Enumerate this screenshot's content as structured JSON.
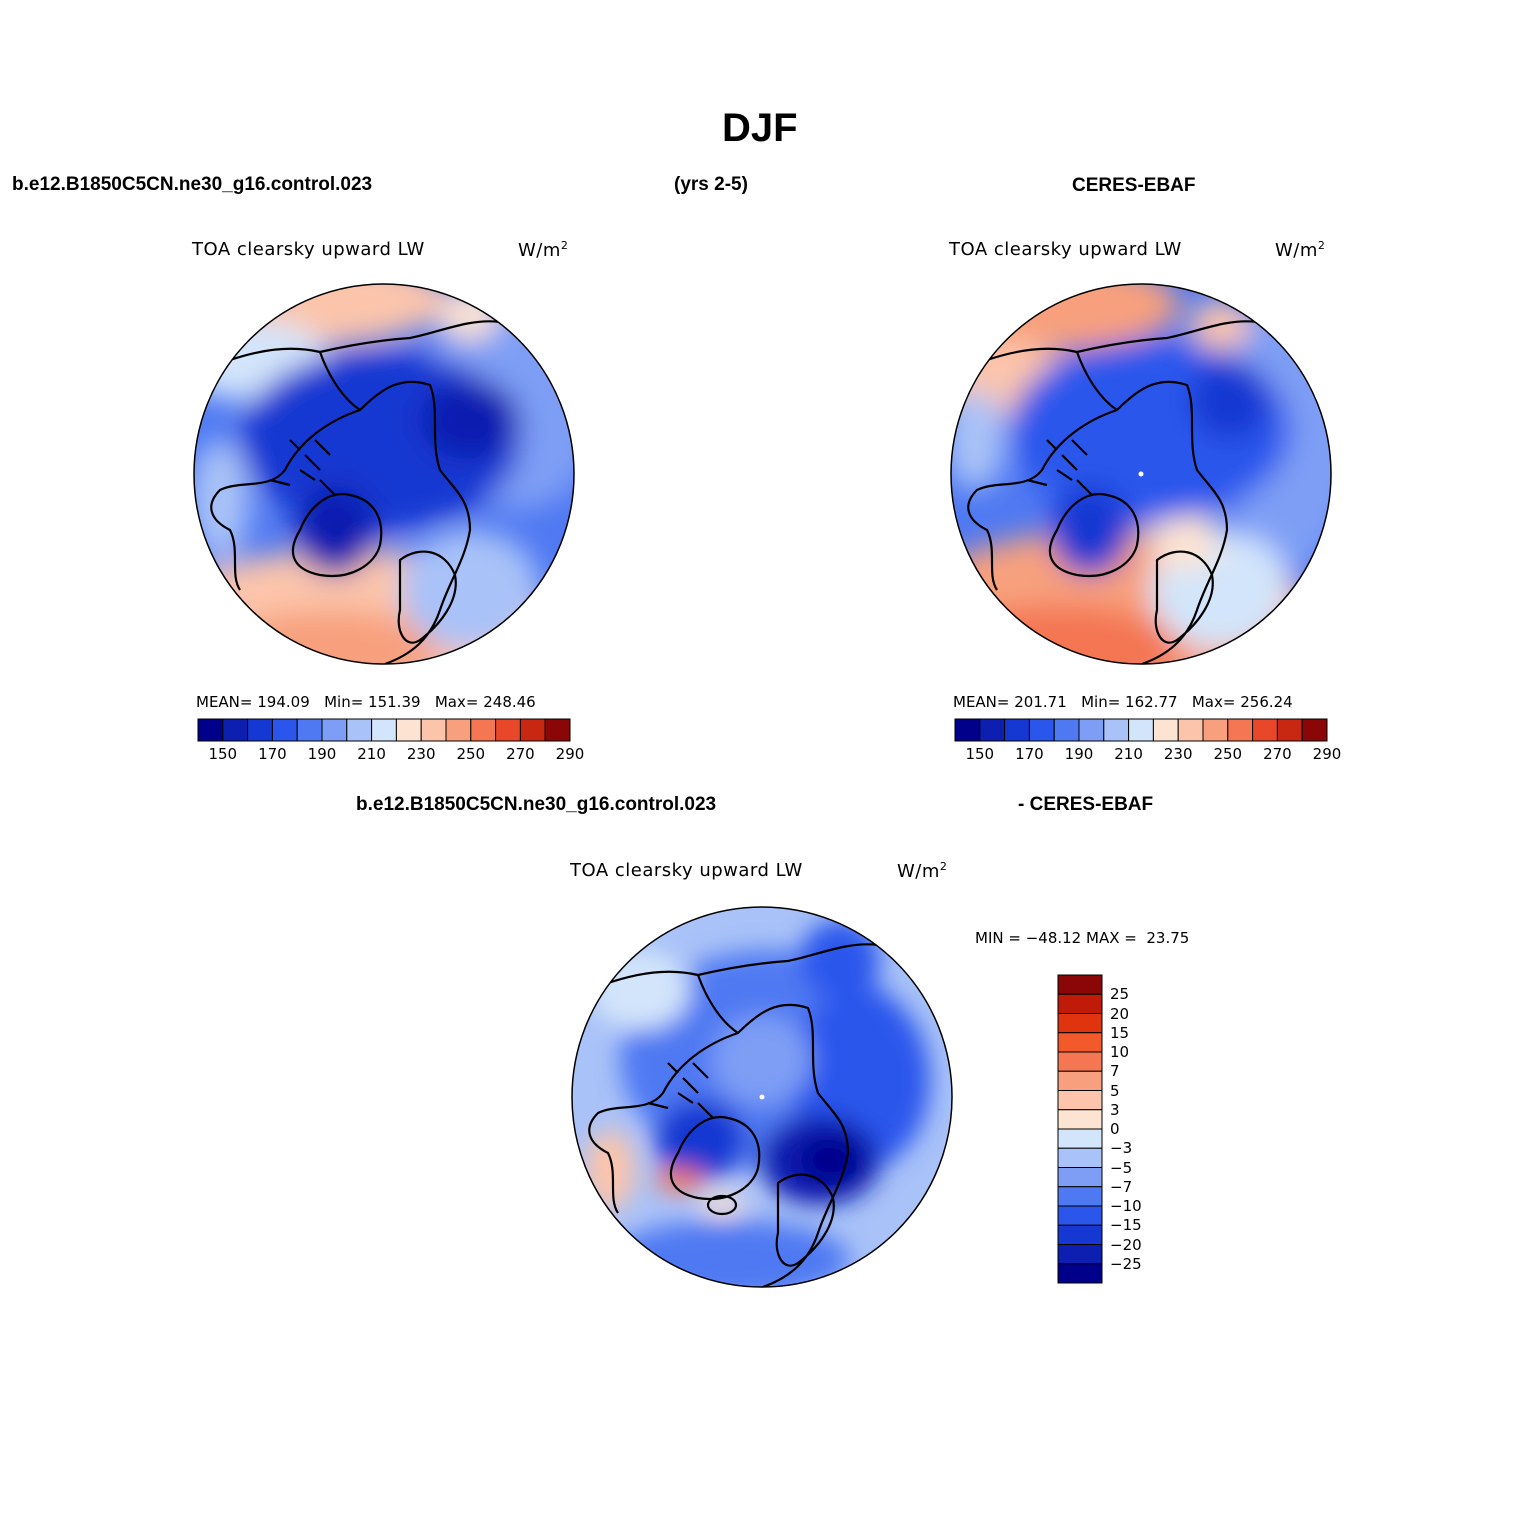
{
  "title": "DJF",
  "header_left": "b.e12.B1850C5CN.ne30_g16.control.023",
  "header_center": "(yrs 2-5)",
  "header_right": "CERES-EBAF",
  "diff_header_left": "b.e12.B1850C5CN.ne30_g16.control.023",
  "diff_header_right": "- CERES-EBAF",
  "variable_label": "TOA clearsky upward LW",
  "units_base": "W/m",
  "units_exp": "2",
  "colors": {
    "abs": [
      "#00008b",
      "#0c1fb0",
      "#1638d2",
      "#2b56ec",
      "#4f79f2",
      "#7e9ef5",
      "#a9c2f8",
      "#d3e5fb",
      "#fde4d2",
      "#fcc5ab",
      "#f8a07d",
      "#f47652",
      "#e8472a",
      "#c82812",
      "#8b0606"
    ],
    "diff": [
      "#00008b",
      "#0c1fb0",
      "#1638d2",
      "#2b56ec",
      "#4f79f2",
      "#7e9ef5",
      "#a9c2f8",
      "#d3e5fb",
      "#fde4d2",
      "#fcc5ab",
      "#f8a07d",
      "#f47652",
      "#f25a2c",
      "#e0340f",
      "#c01a08",
      "#8b0606"
    ],
    "coast": "#000000"
  },
  "chart_data": [
    {
      "type": "heatmap",
      "projection": "north-polar-stereographic",
      "title": "b.e12.B1850C5CN.ne30_g16.control.023",
      "subtitle": "TOA clearsky upward LW",
      "units": "W/m2",
      "stats": {
        "mean_label": "MEAN=",
        "mean": "194.09",
        "min_label": "Min=",
        "min": "151.39",
        "max_label": "Max=",
        "max": "248.46"
      },
      "colorbar": {
        "orientation": "horizontal",
        "levels": [
          150,
          160,
          170,
          180,
          190,
          200,
          210,
          220,
          230,
          240,
          250,
          260,
          270,
          280,
          290
        ],
        "tick_labels": [
          "150",
          "170",
          "190",
          "210",
          "230",
          "250",
          "270",
          "290"
        ]
      }
    },
    {
      "type": "heatmap",
      "projection": "north-polar-stereographic",
      "title": "CERES-EBAF",
      "subtitle": "TOA clearsky upward LW",
      "units": "W/m2",
      "stats": {
        "mean_label": "MEAN=",
        "mean": "201.71",
        "min_label": "Min=",
        "min": "162.77",
        "max_label": "Max=",
        "max": "256.24"
      },
      "colorbar": {
        "orientation": "horizontal",
        "levels": [
          150,
          160,
          170,
          180,
          190,
          200,
          210,
          220,
          230,
          240,
          250,
          260,
          270,
          280,
          290
        ],
        "tick_labels": [
          "150",
          "170",
          "190",
          "210",
          "230",
          "250",
          "270",
          "290"
        ]
      }
    },
    {
      "type": "heatmap",
      "projection": "north-polar-stereographic",
      "title": "b.e12.B1850C5CN.ne30_g16.control.023 - CERES-EBAF",
      "subtitle": "TOA clearsky upward LW",
      "units": "W/m2",
      "stats": {
        "min_label": "MIN =",
        "min": "−48.12",
        "max_label": "MAX =",
        "max": "23.75"
      },
      "colorbar": {
        "orientation": "vertical",
        "levels": [
          -25,
          -20,
          -15,
          -10,
          -7,
          -5,
          -3,
          0,
          3,
          5,
          7,
          10,
          15,
          20,
          25
        ],
        "tick_labels": [
          "25",
          "20",
          "15",
          "10",
          "7",
          "5",
          "3",
          "0",
          "−3",
          "−5",
          "−7",
          "−10",
          "−15",
          "−20",
          "−25"
        ]
      }
    }
  ]
}
